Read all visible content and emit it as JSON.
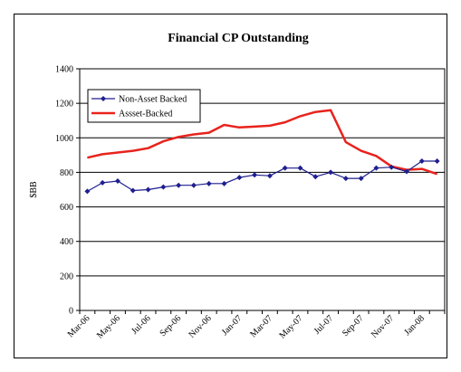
{
  "chart_data": {
    "type": "line",
    "title": "Financial CP Outstanding",
    "xlabel": "",
    "ylabel": "$BB",
    "ylim": [
      0,
      1400
    ],
    "yticks": [
      0,
      200,
      400,
      600,
      800,
      1000,
      1200,
      1400
    ],
    "grid": true,
    "legend_position": "top-left",
    "tick_labels": [
      "Mar-06",
      "May-06",
      "Jul-06",
      "Sep-06",
      "Nov-06",
      "Jan-07",
      "Mar-07",
      "May-07",
      "Jul-07",
      "Sep-07",
      "Nov-07",
      "Jan-08"
    ],
    "categories": [
      "Mar-06",
      "Apr-06",
      "May-06",
      "Jun-06",
      "Jul-06",
      "Aug-06",
      "Sep-06",
      "Oct-06",
      "Nov-06",
      "Dec-06",
      "Jan-07",
      "Feb-07",
      "Mar-07",
      "Apr-07",
      "May-07",
      "Jun-07",
      "Jul-07",
      "Aug-07",
      "Sep-07",
      "Oct-07",
      "Nov-07",
      "Dec-07",
      "Jan-08",
      "Feb-08"
    ],
    "series": [
      {
        "name": "Non-Asset Backed",
        "color": "#1f1f8f",
        "marker": "diamond",
        "values": [
          690,
          740,
          750,
          695,
          700,
          715,
          725,
          725,
          735,
          735,
          770,
          785,
          780,
          825,
          825,
          775,
          800,
          765,
          765,
          825,
          830,
          805,
          865,
          865
        ]
      },
      {
        "name": "Assset-Backed",
        "color": "#e8231c",
        "marker": "none",
        "values": [
          885,
          905,
          915,
          925,
          940,
          980,
          1005,
          1020,
          1030,
          1075,
          1060,
          1065,
          1070,
          1090,
          1125,
          1150,
          1160,
          975,
          925,
          895,
          835,
          815,
          820,
          790
        ]
      }
    ]
  }
}
